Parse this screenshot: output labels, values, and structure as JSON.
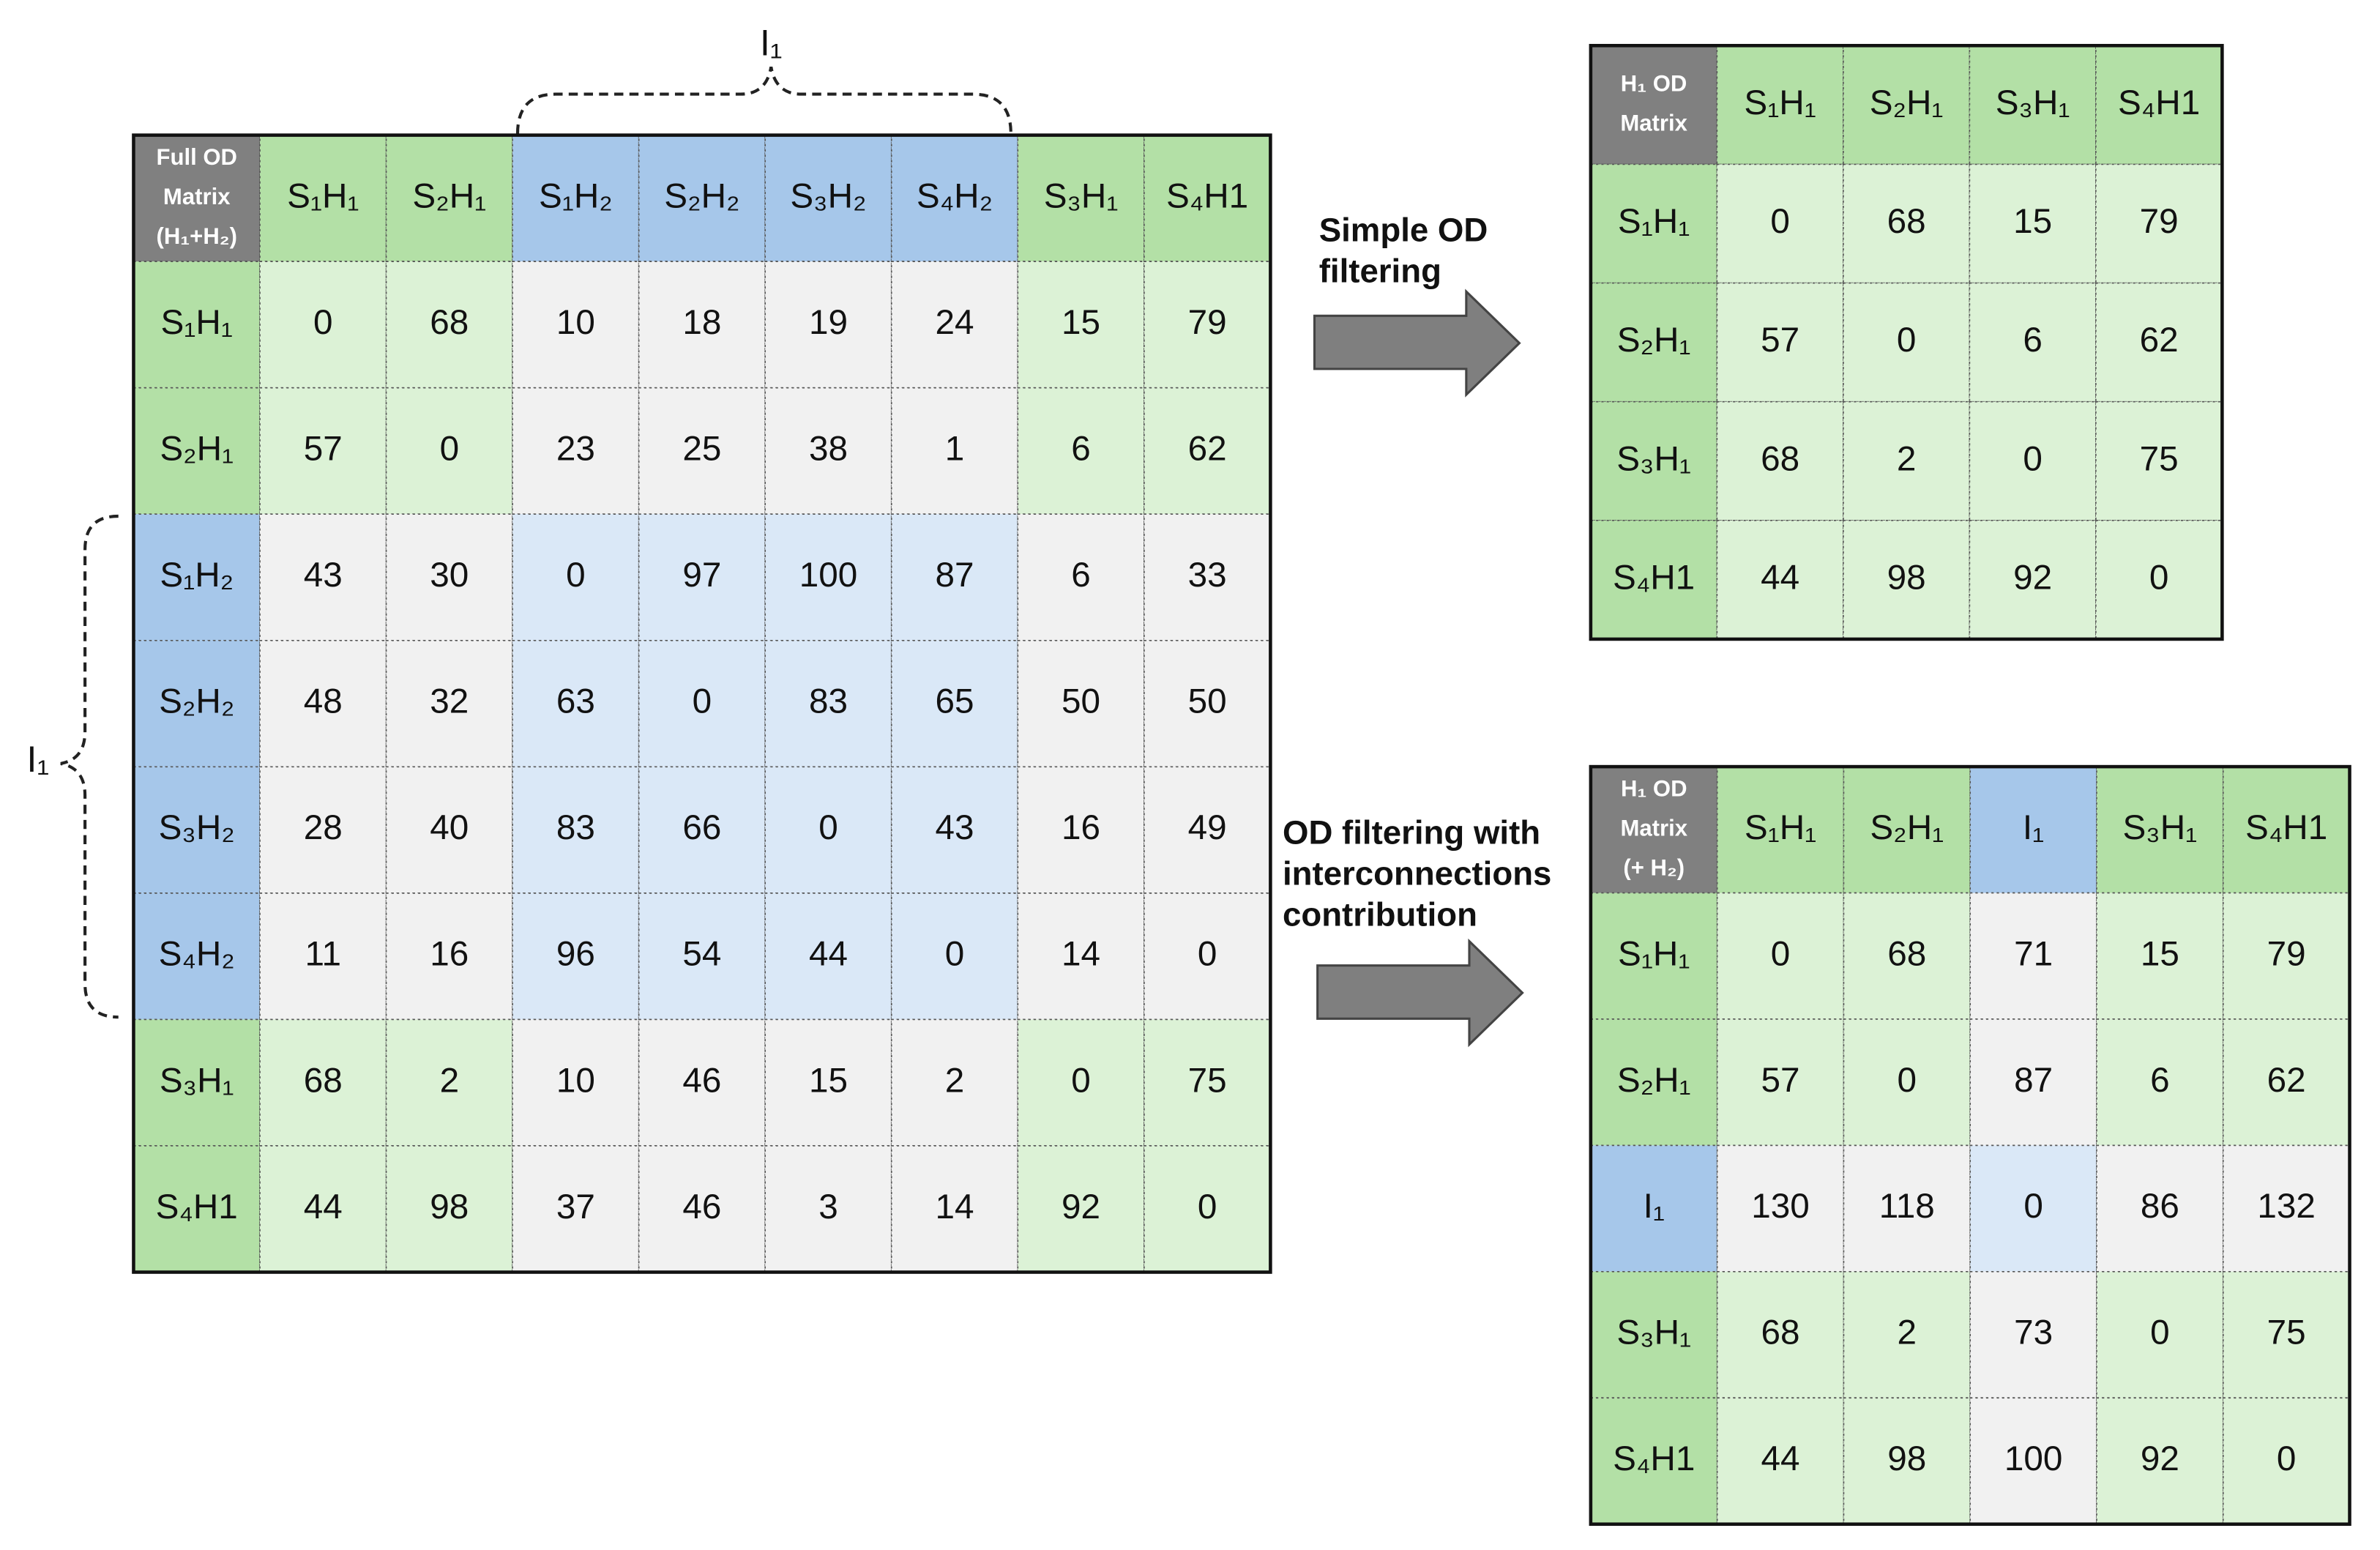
{
  "full_matrix": {
    "corner": [
      "Full OD",
      "Matrix",
      "(H₁+H₂)"
    ],
    "columns": [
      "S₁H₁",
      "S₂H₁",
      "S₁H₂",
      "S₂H₂",
      "S₃H₂",
      "S₄H₂",
      "S₃H₁",
      "S₄H1"
    ],
    "rows": [
      {
        "header": "S₁H₁",
        "values": [
          0,
          68,
          10,
          18,
          19,
          24,
          15,
          79
        ]
      },
      {
        "header": "S₂H₁",
        "values": [
          57,
          0,
          23,
          25,
          38,
          1,
          6,
          62
        ]
      },
      {
        "header": "S₁H₂",
        "values": [
          43,
          30,
          0,
          97,
          100,
          87,
          6,
          33
        ]
      },
      {
        "header": "S₂H₂",
        "values": [
          48,
          32,
          63,
          0,
          83,
          65,
          50,
          50
        ]
      },
      {
        "header": "S₃H₂",
        "values": [
          28,
          40,
          83,
          66,
          0,
          43,
          16,
          49
        ]
      },
      {
        "header": "S₄H₂",
        "values": [
          11,
          16,
          96,
          54,
          44,
          0,
          14,
          0
        ]
      },
      {
        "header": "S₃H₁",
        "values": [
          68,
          2,
          10,
          46,
          15,
          2,
          0,
          75
        ]
      },
      {
        "header": "S₄H1",
        "values": [
          44,
          98,
          37,
          46,
          3,
          14,
          92,
          0
        ]
      }
    ]
  },
  "top_brace_label": "I₁",
  "left_brace_label": "I₁",
  "simple_filter_label": [
    "Simple OD",
    "filtering"
  ],
  "interconnection_filter_label": [
    "OD filtering with",
    "interconnections",
    "contribution"
  ],
  "simple_matrix": {
    "corner": [
      "H₁ OD",
      "Matrix"
    ],
    "columns": [
      "S₁H₁",
      "S₂H₁",
      "S₃H₁",
      "S₄H1"
    ],
    "rows": [
      {
        "header": "S₁H₁",
        "values": [
          0,
          68,
          15,
          79
        ]
      },
      {
        "header": "S₂H₁",
        "values": [
          57,
          0,
          6,
          62
        ]
      },
      {
        "header": "S₃H₁",
        "values": [
          68,
          2,
          0,
          75
        ]
      },
      {
        "header": "S₄H1",
        "values": [
          44,
          98,
          92,
          0
        ]
      }
    ]
  },
  "interconnection_matrix": {
    "corner": [
      "H₁ OD",
      "Matrix",
      "(+ H₂)"
    ],
    "columns": [
      "S₁H₁",
      "S₂H₁",
      "I₁",
      "S₃H₁",
      "S₄H1"
    ],
    "rows": [
      {
        "header": "S₁H₁",
        "values": [
          0,
          68,
          71,
          15,
          79
        ]
      },
      {
        "header": "S₂H₁",
        "values": [
          57,
          0,
          87,
          6,
          62
        ]
      },
      {
        "header": "I₁",
        "values": [
          130,
          118,
          0,
          86,
          132
        ]
      },
      {
        "header": "S₃H₁",
        "values": [
          68,
          2,
          73,
          0,
          75
        ]
      },
      {
        "header": "S₄H1",
        "values": [
          44,
          98,
          100,
          92,
          0
        ]
      }
    ]
  }
}
